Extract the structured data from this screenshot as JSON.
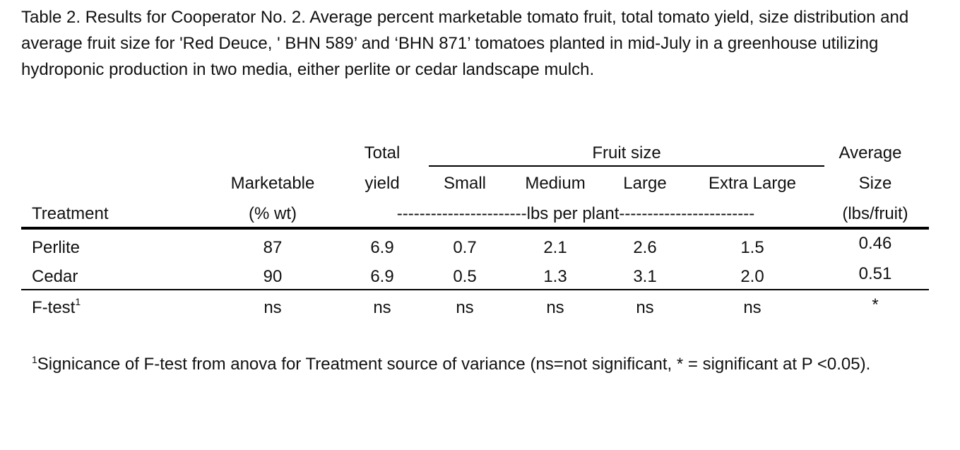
{
  "caption": "Table 2. Results for Cooperator No.  2. Average percent marketable tomato fruit, total tomato yield, size distribution and average fruit size for 'Red Deuce, ' BHN 589’ and ‘BHN 871’  tomatoes planted in mid-July  in a greenhouse utilizing  hydroponic production in two media, either perlite or cedar landscape mulch.",
  "headers": {
    "treatment": "Treatment",
    "marketable": "Marketable",
    "marketable_unit": "(% wt)",
    "total_line1": "Total",
    "total_line2": "yield",
    "fruit_size": "Fruit size",
    "small": "Small",
    "medium": "Medium",
    "large": "Large",
    "extra_large": "Extra Large",
    "avg_line1": "Average",
    "avg_line2": "Size",
    "avg_unit": "(lbs/fruit)",
    "lbs_span": "-----------------------lbs per plant------------------------"
  },
  "rows": [
    {
      "treatment": "Perlite",
      "marketable": "87",
      "total": "6.9",
      "small": "0.7",
      "medium": "2.1",
      "large": "2.6",
      "extra_large": "1.5",
      "avg": "0.46"
    },
    {
      "treatment": "Cedar",
      "marketable": "90",
      "total": "6.9",
      "small": "0.5",
      "medium": "1.3",
      "large": "3.1",
      "extra_large": "2.0",
      "avg": "0.51"
    }
  ],
  "ftest": {
    "label": "F-test",
    "sup": "1",
    "marketable": "ns",
    "total": "ns",
    "small": "ns",
    "medium": "ns",
    "large": "ns",
    "extra_large": "ns",
    "avg": "*"
  },
  "footnote": {
    "sup": "1",
    "text": "Signicance of F-test from anova for Treatment source of variance (ns=not significant, * = significant at P <0.05)."
  }
}
